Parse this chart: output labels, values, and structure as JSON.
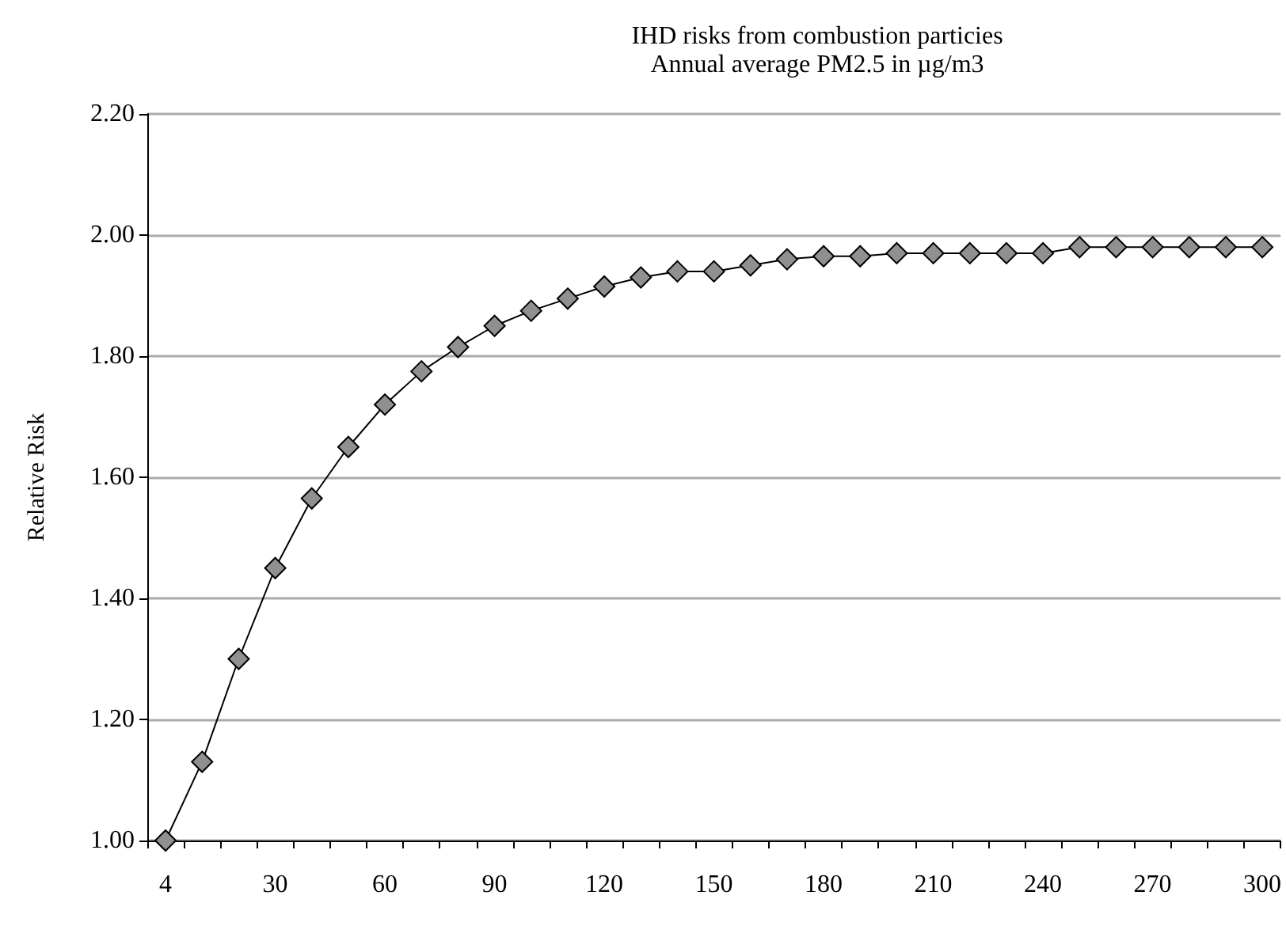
{
  "chart_data": {
    "type": "line",
    "title": "IHD risks from combustion particies",
    "subtitle": "Annual average PM2.5 in µg/m3",
    "ylabel": "Relative Risk",
    "categories": [
      "4",
      null,
      null,
      "30",
      null,
      null,
      "60",
      null,
      null,
      "90",
      null,
      null,
      "120",
      null,
      null,
      "150",
      null,
      null,
      "180",
      null,
      null,
      "210",
      null,
      null,
      "240",
      null,
      null,
      "270",
      null,
      null,
      "300"
    ],
    "series": [
      {
        "color": "#909090",
        "values": [
          1.0,
          1.13,
          1.3,
          1.45,
          1.565,
          1.65,
          1.72,
          1.775,
          1.815,
          1.85,
          1.875,
          1.895,
          1.915,
          1.93,
          1.94,
          1.94,
          1.95,
          1.96,
          1.965,
          1.965,
          1.97,
          1.97,
          1.97,
          1.97,
          1.97,
          1.98,
          1.98,
          1.98,
          1.98,
          1.98,
          1.98
        ]
      }
    ],
    "ylim": [
      1.0,
      2.2
    ],
    "yticks": [
      {
        "value": 1.0,
        "label": "1.00"
      },
      {
        "value": 1.2,
        "label": "1.20"
      },
      {
        "value": 1.4,
        "label": "1.40"
      },
      {
        "value": 1.6,
        "label": "1.60"
      },
      {
        "value": 1.8,
        "label": "1.80"
      },
      {
        "value": 2.0,
        "label": "2.00"
      },
      {
        "value": 2.2,
        "label": "2.20"
      }
    ],
    "grid": "y",
    "marker": "diamond",
    "line_style": "solid"
  }
}
